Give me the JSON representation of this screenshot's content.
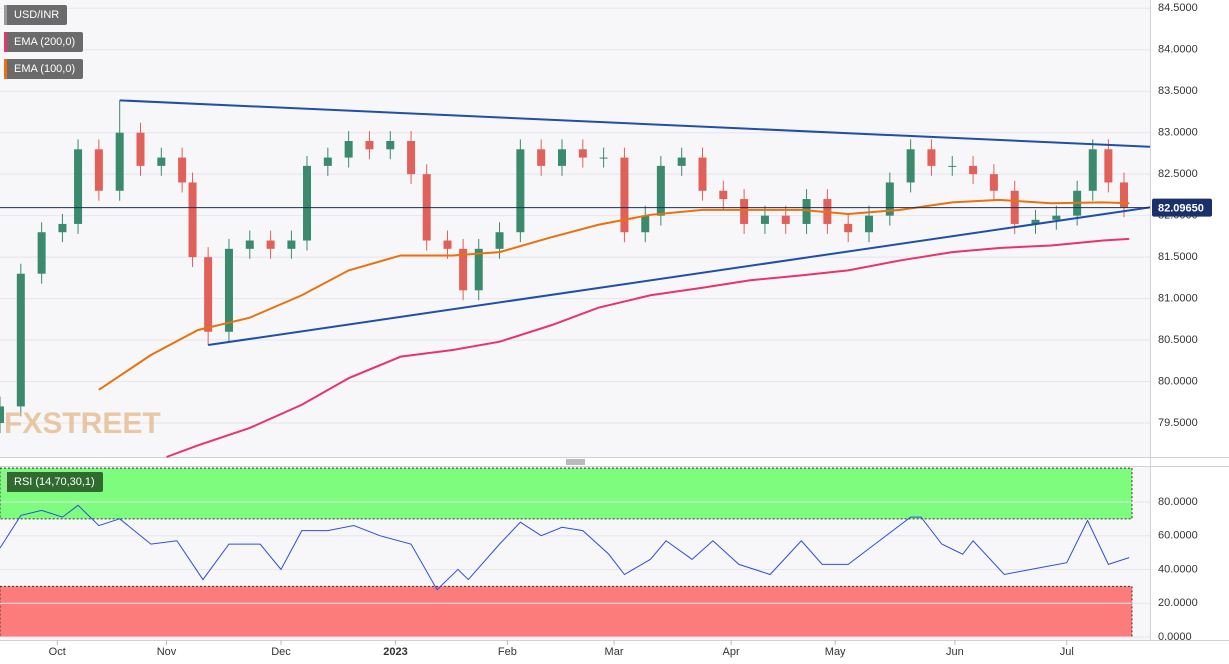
{
  "chart_data": [
    {
      "type": "candlestick",
      "symbol": "USD/INR",
      "watermark": "FXSTREET",
      "up_color": "#3b8a6d",
      "down_color": "#e0605a",
      "candles": {
        "x": [
          0,
          4,
          8,
          12,
          15,
          19,
          23,
          27,
          31,
          35,
          37,
          40,
          44,
          48,
          52,
          56,
          59,
          63,
          67,
          71,
          75,
          79,
          82,
          86,
          89,
          92,
          96,
          100,
          104,
          108,
          112,
          116,
          120,
          124,
          127,
          131,
          135,
          139,
          143,
          147,
          151,
          155,
          159,
          163,
          167,
          171,
          175,
          179,
          183,
          187,
          191,
          195,
          199,
          203,
          207,
          210,
          213,
          216
        ],
        "open": [
          79.5,
          79.7,
          81.3,
          81.8,
          81.9,
          82.8,
          82.3,
          83.0,
          82.6,
          82.7,
          82.4,
          81.5,
          80.6,
          81.6,
          81.7,
          81.6,
          81.7,
          82.6,
          82.7,
          82.9,
          82.8,
          82.9,
          82.5,
          81.7,
          81.6,
          81.1,
          81.6,
          81.8,
          82.8,
          82.6,
          82.8,
          82.7,
          82.7,
          81.8,
          82.0,
          82.6,
          82.7,
          82.3,
          82.2,
          81.9,
          82.0,
          81.9,
          82.2,
          81.9,
          81.8,
          82.0,
          82.4,
          82.8,
          82.6,
          82.6,
          82.5,
          82.3,
          81.9,
          81.95,
          82.0,
          82.3,
          82.8,
          82.4
        ],
        "high": [
          79.82,
          81.42,
          81.92,
          82.02,
          82.92,
          82.92,
          83.39,
          83.12,
          82.82,
          82.82,
          82.52,
          81.62,
          81.72,
          81.82,
          81.82,
          81.82,
          82.72,
          82.82,
          83.02,
          83.02,
          83.02,
          83.02,
          82.62,
          81.82,
          81.72,
          81.72,
          81.92,
          82.92,
          82.92,
          82.92,
          82.92,
          82.82,
          82.82,
          82.12,
          82.72,
          82.82,
          82.82,
          82.42,
          82.32,
          82.12,
          82.12,
          82.32,
          82.32,
          82.02,
          82.12,
          82.52,
          82.92,
          82.92,
          82.72,
          82.72,
          82.62,
          82.42,
          82.07,
          82.12,
          82.42,
          82.92,
          82.92,
          82.52
        ],
        "low": [
          79.38,
          79.58,
          81.18,
          81.68,
          81.78,
          82.18,
          82.18,
          82.48,
          82.48,
          82.28,
          81.38,
          80.44,
          80.48,
          81.48,
          81.48,
          81.48,
          81.58,
          82.48,
          82.58,
          82.68,
          82.68,
          82.38,
          81.58,
          81.48,
          80.98,
          80.98,
          81.48,
          81.68,
          82.48,
          82.48,
          82.58,
          82.58,
          81.68,
          81.68,
          81.88,
          82.48,
          82.18,
          82.08,
          81.78,
          81.78,
          81.78,
          81.78,
          81.78,
          81.68,
          81.68,
          81.88,
          82.28,
          82.48,
          82.48,
          82.38,
          82.18,
          81.78,
          81.78,
          81.83,
          81.88,
          82.18,
          82.28,
          81.98
        ],
        "close": [
          79.7,
          81.3,
          81.8,
          81.9,
          82.8,
          82.3,
          83.0,
          82.6,
          82.7,
          82.4,
          81.5,
          80.6,
          81.6,
          81.7,
          81.6,
          81.7,
          82.6,
          82.7,
          82.9,
          82.8,
          82.9,
          82.5,
          81.7,
          81.6,
          81.1,
          81.6,
          81.8,
          82.8,
          82.6,
          82.8,
          82.7,
          82.7,
          81.8,
          82.0,
          82.6,
          82.7,
          82.3,
          82.2,
          81.9,
          82.0,
          81.9,
          82.2,
          81.9,
          81.8,
          82.0,
          82.4,
          82.8,
          82.6,
          82.6,
          82.5,
          82.3,
          81.9,
          81.95,
          82.0,
          82.3,
          82.8,
          82.4,
          82.1
        ]
      },
      "series": [
        {
          "name": "EMA (200,0)",
          "color": "#e8336b",
          "x": [
            32,
            38,
            48,
            58,
            67,
            77,
            87,
            96,
            106,
            115,
            125,
            135,
            144,
            154,
            163,
            173,
            183,
            192,
            202,
            212,
            217
          ],
          "values": [
            79.09,
            79.23,
            79.44,
            79.72,
            80.04,
            80.3,
            80.38,
            80.48,
            80.68,
            80.89,
            81.04,
            81.13,
            81.22,
            81.28,
            81.34,
            81.46,
            81.56,
            81.61,
            81.64,
            81.7,
            81.72
          ]
        },
        {
          "name": "EMA (100,0)",
          "color": "#e8720c",
          "x": [
            19,
            29,
            38,
            48,
            58,
            67,
            77,
            87,
            96,
            106,
            115,
            125,
            135,
            144,
            154,
            163,
            173,
            183,
            192,
            202,
            212,
            217
          ],
          "values": [
            79.9,
            80.32,
            80.62,
            80.77,
            81.04,
            81.34,
            81.52,
            81.52,
            81.56,
            81.74,
            81.89,
            82.01,
            82.07,
            82.07,
            82.07,
            82.02,
            82.07,
            82.16,
            82.19,
            82.15,
            82.16,
            82.15
          ]
        }
      ],
      "trendlines": [
        {
          "color": "#1f4fa8",
          "x": [
            23,
            221
          ],
          "values": [
            83.39,
            82.83
          ]
        },
        {
          "color": "#1f4fa8",
          "x": [
            40,
            221
          ],
          "values": [
            80.44,
            82.1
          ]
        }
      ],
      "last_price": {
        "value": 82.0965,
        "label": "82.09650"
      },
      "xlim": [
        0,
        221
      ],
      "ylim": [
        79.09,
        84.6
      ],
      "yticks": [
        {
          "value": 84.5,
          "label": "84.5000"
        },
        {
          "value": 84,
          "label": "84.0000"
        },
        {
          "value": 83.5,
          "label": "83.5000"
        },
        {
          "value": 83,
          "label": "83.0000"
        },
        {
          "value": 82.5,
          "label": "82.5000"
        },
        {
          "value": 82,
          "label": "82.0000"
        },
        {
          "value": 81.5,
          "label": "81.5000"
        },
        {
          "value": 81,
          "label": "81.0000"
        },
        {
          "value": 80.5,
          "label": "80.5000"
        },
        {
          "value": 80,
          "label": "80.0000"
        },
        {
          "value": 79.5,
          "label": "79.5000"
        }
      ],
      "grid": true
    },
    {
      "type": "line",
      "title": "RSI (14,70,30,1)",
      "series": [
        {
          "color": "#2b4fd8",
          "x": [
            0,
            4,
            8,
            12,
            15,
            19,
            23,
            29,
            34,
            39,
            44,
            50,
            54,
            58,
            63,
            68,
            73,
            79,
            84,
            88,
            90,
            96,
            100,
            104,
            108,
            112,
            117,
            120,
            125,
            128,
            133,
            137,
            142,
            148,
            154,
            158,
            163,
            169,
            175,
            177,
            181,
            185,
            187,
            193,
            198,
            205,
            209,
            213,
            217
          ],
          "values": [
            52.7,
            72,
            75,
            71,
            78,
            66,
            70,
            55,
            57,
            34,
            55,
            55,
            40,
            63,
            63,
            66,
            60,
            55,
            28,
            40,
            34,
            55,
            68,
            60,
            65,
            63,
            49,
            37,
            46,
            57,
            46,
            57,
            43,
            37,
            57,
            43,
            43,
            57,
            71,
            71,
            55,
            49,
            57,
            37,
            40,
            44,
            69,
            43,
            47
          ]
        }
      ],
      "bands": [
        {
          "from": 70,
          "to": 100,
          "color": "#7dfc7d"
        },
        {
          "from": 0,
          "to": 30,
          "color": "#fc7b7b"
        }
      ],
      "xlim": [
        0,
        221
      ],
      "ylim": [
        -1.8,
        100.7
      ],
      "yticks": [
        {
          "value": 80,
          "label": "80.0000"
        },
        {
          "value": 60,
          "label": "60.0000"
        },
        {
          "value": 40,
          "label": "40.0000"
        },
        {
          "value": 20,
          "label": "20.0000"
        },
        {
          "value": 0,
          "label": "0.0000"
        }
      ],
      "xticks": [
        {
          "value": 11,
          "label": "Oct"
        },
        {
          "value": 32,
          "label": "Nov"
        },
        {
          "value": 54,
          "label": "Dec"
        },
        {
          "value": 76,
          "label": "2023"
        },
        {
          "value": 97.5,
          "label": "Feb"
        },
        {
          "value": 118,
          "label": "Mar"
        },
        {
          "value": 140.5,
          "label": "Apr"
        },
        {
          "value": 160.5,
          "label": "May"
        },
        {
          "value": 183.5,
          "label": "Jun"
        },
        {
          "value": 205,
          "label": "Jul"
        }
      ]
    }
  ]
}
